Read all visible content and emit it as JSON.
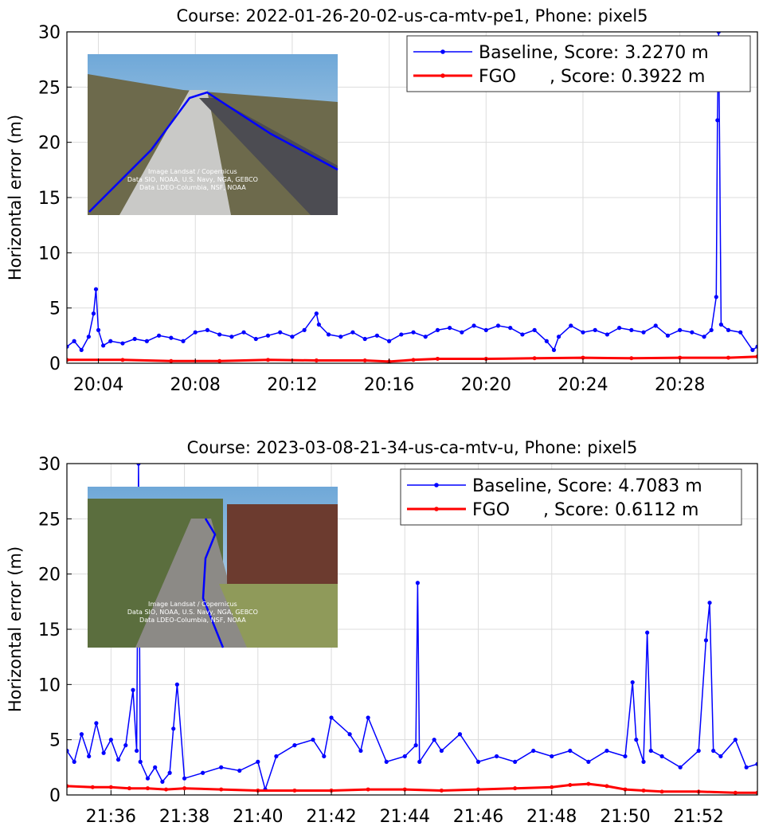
{
  "colors": {
    "baseline": "#0000ff",
    "fgo": "#ff0000",
    "grid": "#dcdcdc",
    "axis": "#000000"
  },
  "chart_data": [
    {
      "type": "line",
      "title": "Course: 2022-01-26-20-02-us-ca-mtv-pe1, Phone: pixel5",
      "xlabel": "",
      "ylabel": "Horizontal error (m)",
      "xlim_min": [
        20,
        2.7
      ],
      "xlim_max": [
        20,
        31.2
      ],
      "ylim": [
        0,
        30
      ],
      "yticks": [
        0,
        5,
        10,
        15,
        20,
        25,
        30
      ],
      "xtick_minutes": [
        4,
        8,
        12,
        16,
        20,
        24,
        28
      ],
      "xtick_labels": [
        "20:04",
        "20:08",
        "20:12",
        "20:16",
        "20:20",
        "20:24",
        "20:28"
      ],
      "grid": true,
      "legend_position": "top-right",
      "legend": [
        "Baseline, Score: 3.2270 m",
        "FGO      , Score: 0.3922 m"
      ],
      "inset_image": {
        "description": "aerial view of highway with blue trajectory",
        "credit": [
          "Image Landsat / Copernicus",
          "Data SIO, NOAA, U.S. Navy, NGA, GEBCO",
          "Data LDEO-Columbia, NSF, NOAA"
        ]
      },
      "series": [
        {
          "name": "Baseline",
          "x_minutes": [
            2.7,
            3.0,
            3.3,
            3.6,
            3.8,
            3.9,
            4.0,
            4.2,
            4.5,
            5.0,
            5.5,
            6.0,
            6.5,
            7.0,
            7.5,
            8.0,
            8.5,
            9.0,
            9.5,
            10.0,
            10.5,
            11.0,
            11.5,
            12.0,
            12.5,
            13.0,
            13.1,
            13.5,
            14.0,
            14.5,
            15.0,
            15.5,
            16.0,
            16.5,
            17.0,
            17.5,
            18.0,
            18.5,
            19.0,
            19.5,
            20.0,
            20.5,
            21.0,
            21.5,
            22.0,
            22.5,
            22.8,
            23.0,
            23.5,
            24.0,
            24.5,
            25.0,
            25.5,
            26.0,
            26.5,
            27.0,
            27.5,
            28.0,
            28.5,
            29.0,
            29.3,
            29.5,
            29.55,
            29.6,
            29.7,
            30.0,
            30.5,
            31.0,
            31.2
          ],
          "values": [
            1.5,
            2.0,
            1.2,
            2.4,
            4.5,
            6.7,
            3.0,
            1.6,
            2.0,
            1.8,
            2.2,
            2.0,
            2.5,
            2.3,
            2.0,
            2.8,
            3.0,
            2.6,
            2.4,
            2.8,
            2.2,
            2.5,
            2.8,
            2.4,
            3.0,
            4.5,
            3.5,
            2.6,
            2.4,
            2.8,
            2.2,
            2.5,
            2.0,
            2.6,
            2.8,
            2.4,
            3.0,
            3.2,
            2.8,
            3.4,
            3.0,
            3.4,
            3.2,
            2.6,
            3.0,
            2.0,
            1.2,
            2.4,
            3.4,
            2.8,
            3.0,
            2.6,
            3.2,
            3.0,
            2.8,
            3.4,
            2.5,
            3.0,
            2.8,
            2.4,
            3.0,
            6.0,
            22.0,
            30.0,
            3.5,
            3.0,
            2.8,
            1.2,
            1.5
          ]
        },
        {
          "name": "FGO",
          "x_minutes": [
            2.7,
            5.0,
            7.0,
            9.0,
            11.0,
            13.0,
            15.0,
            16.0,
            17.0,
            18.0,
            20.0,
            22.0,
            24.0,
            26.0,
            28.0,
            30.0,
            31.2
          ],
          "values": [
            0.3,
            0.3,
            0.2,
            0.2,
            0.3,
            0.25,
            0.25,
            0.15,
            0.3,
            0.4,
            0.4,
            0.45,
            0.5,
            0.45,
            0.5,
            0.5,
            0.6
          ]
        }
      ]
    },
    {
      "type": "line",
      "title": "Course: 2023-03-08-21-34-us-ca-mtv-u, Phone: pixel5",
      "xlabel": "",
      "ylabel": "Horizontal error (m)",
      "xlim_min": [
        21,
        34.8
      ],
      "xlim_max": [
        21,
        53.6
      ],
      "ylim": [
        0,
        30
      ],
      "yticks": [
        0,
        5,
        10,
        15,
        20,
        25,
        30
      ],
      "xtick_minutes": [
        36,
        38,
        40,
        42,
        44,
        46,
        48,
        50,
        52
      ],
      "xtick_labels": [
        "21:36",
        "21:38",
        "21:40",
        "21:42",
        "21:44",
        "21:46",
        "21:48",
        "21:50",
        "21:52"
      ],
      "grid": true,
      "legend_position": "top-right",
      "legend": [
        "Baseline, Score: 4.7083 m",
        "FGO      , Score: 0.6112 m"
      ],
      "inset_image": {
        "description": "aerial view of campus street with blue trajectory",
        "credit": [
          "Image Landsat / Copernicus",
          "Data SIO, NOAA, U.S. Navy, NGA, GEBCO",
          "Data LDEO-Columbia, NSF, NOAA"
        ]
      },
      "series": [
        {
          "name": "Baseline",
          "x_minutes": [
            34.8,
            35.0,
            35.2,
            35.4,
            35.6,
            35.8,
            36.0,
            36.2,
            36.4,
            36.6,
            36.7,
            36.75,
            36.8,
            37.0,
            37.2,
            37.4,
            37.6,
            37.7,
            37.8,
            38.0,
            38.5,
            39.0,
            39.5,
            40.0,
            40.2,
            40.5,
            41.0,
            41.5,
            41.8,
            42.0,
            42.5,
            42.8,
            43.0,
            43.5,
            44.0,
            44.3,
            44.35,
            44.4,
            44.8,
            45.0,
            45.5,
            46.0,
            46.5,
            47.0,
            47.5,
            48.0,
            48.5,
            49.0,
            49.5,
            50.0,
            50.2,
            50.3,
            50.5,
            50.6,
            50.7,
            51.0,
            51.5,
            52.0,
            52.2,
            52.3,
            52.4,
            52.6,
            53.0,
            53.3,
            53.6
          ],
          "values": [
            4.0,
            3.0,
            5.5,
            3.5,
            6.5,
            3.8,
            5.0,
            3.2,
            4.5,
            9.5,
            4.0,
            30.0,
            3.0,
            1.5,
            2.5,
            1.2,
            2.0,
            6.0,
            10.0,
            1.5,
            2.0,
            2.5,
            2.2,
            3.0,
            0.5,
            3.5,
            4.5,
            5.0,
            3.5,
            7.0,
            5.5,
            4.0,
            7.0,
            3.0,
            3.5,
            4.5,
            19.2,
            3.0,
            5.0,
            4.0,
            5.5,
            3.0,
            3.5,
            3.0,
            4.0,
            3.5,
            4.0,
            3.0,
            4.0,
            3.5,
            10.2,
            5.0,
            3.0,
            14.7,
            4.0,
            3.5,
            2.5,
            4.0,
            14.0,
            17.4,
            4.0,
            3.5,
            5.0,
            2.5,
            2.8
          ]
        },
        {
          "name": "FGO",
          "x_minutes": [
            34.8,
            35.5,
            36.0,
            36.5,
            37.0,
            37.5,
            38.0,
            39.0,
            40.0,
            41.0,
            42.0,
            43.0,
            44.0,
            45.0,
            46.0,
            47.0,
            48.0,
            48.5,
            49.0,
            49.5,
            50.0,
            50.5,
            51.0,
            52.0,
            53.0,
            53.6
          ],
          "values": [
            0.8,
            0.7,
            0.7,
            0.6,
            0.6,
            0.5,
            0.6,
            0.5,
            0.4,
            0.4,
            0.4,
            0.5,
            0.5,
            0.4,
            0.5,
            0.6,
            0.7,
            0.9,
            1.0,
            0.8,
            0.5,
            0.4,
            0.3,
            0.3,
            0.2,
            0.2
          ]
        }
      ]
    }
  ]
}
